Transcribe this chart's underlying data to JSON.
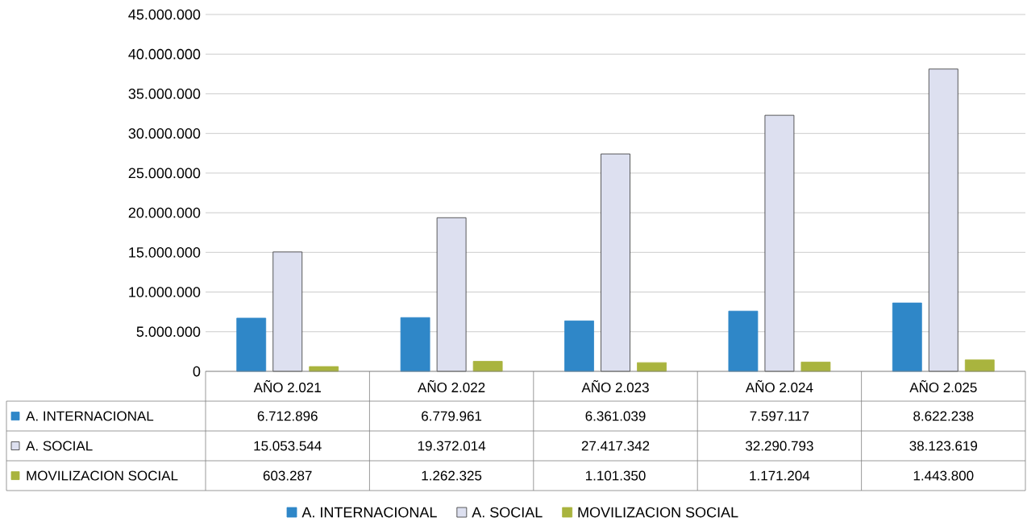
{
  "chart_data": {
    "type": "bar",
    "categories": [
      "AÑO 2.021",
      "AÑO 2.022",
      "AÑO 2.023",
      "AÑO 2.024",
      "AÑO 2.025"
    ],
    "series": [
      {
        "name": "A. INTERNACIONAL",
        "color": "#2f87c8",
        "values": [
          6712896,
          6779961,
          6361039,
          7597117,
          8622238
        ],
        "value_labels": [
          "6.712.896",
          "6.779.961",
          "6.361.039",
          "7.597.117",
          "8.622.238"
        ]
      },
      {
        "name": "A. SOCIAL",
        "color": "#dde0f0",
        "values": [
          15053544,
          19372014,
          27417342,
          32290793,
          38123619
        ],
        "value_labels": [
          "15.053.544",
          "19.372.014",
          "27.417.342",
          "32.290.793",
          "38.123.619"
        ]
      },
      {
        "name": "MOVILIZACION SOCIAL",
        "color": "#a9b43e",
        "values": [
          603287,
          1262325,
          1101350,
          1171204,
          1443800
        ],
        "value_labels": [
          "603.287",
          "1.262.325",
          "1.101.350",
          "1.171.204",
          "1.443.800"
        ]
      }
    ],
    "ylim": [
      0,
      45000000
    ],
    "yticks": [
      0,
      {
        "value": 5000000,
        "label": "5.000.000"
      },
      {
        "value": 10000000,
        "label": "10.000.000"
      },
      {
        "value": 15000000,
        "label": "15.000.000"
      },
      {
        "value": 20000000,
        "label": "20.000.000"
      },
      {
        "value": 25000000,
        "label": "25.000.000"
      },
      {
        "value": 30000000,
        "label": "30.000.000"
      },
      {
        "value": 35000000,
        "label": "35.000.000"
      },
      {
        "value": 40000000,
        "label": "40.000.000"
      },
      {
        "value": 45000000,
        "label": "45.000.000"
      }
    ],
    "grid": "y",
    "legend": "bottom"
  }
}
